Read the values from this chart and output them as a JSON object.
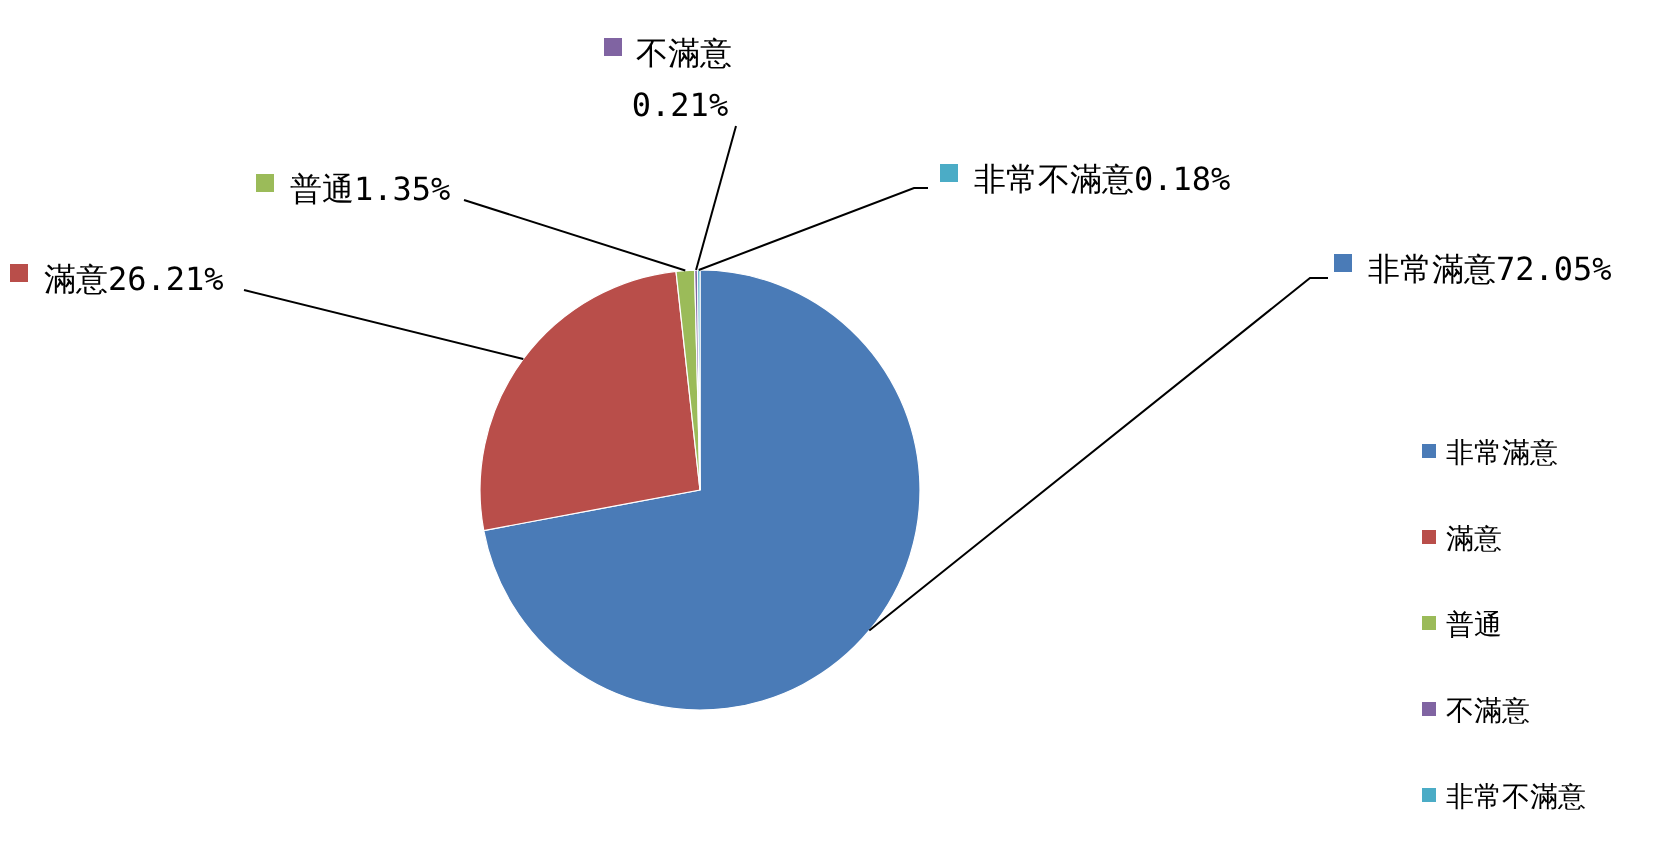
{
  "chart_data": {
    "type": "pie",
    "categories": [
      "非常滿意",
      "滿意",
      "普通",
      "不滿意",
      "非常不滿意"
    ],
    "values": [
      72.05,
      26.21,
      1.35,
      0.21,
      0.18
    ],
    "colors": [
      "#4a7bb7",
      "#b94e4a",
      "#9bbb59",
      "#8064a2",
      "#4bacc6"
    ],
    "value_labels": [
      "72.05%",
      "26.21%",
      "1.35%",
      "0.21%",
      "0.18%"
    ],
    "legend": "right"
  }
}
